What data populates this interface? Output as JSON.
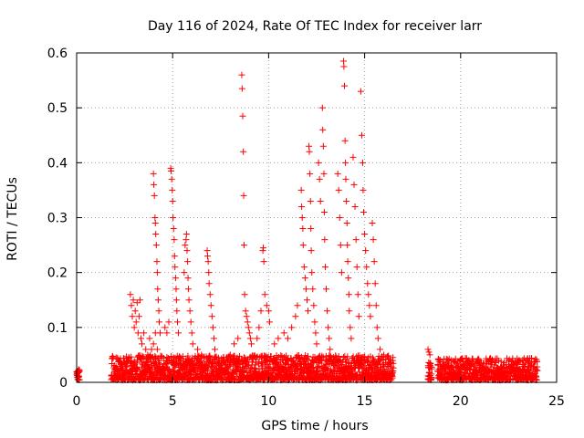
{
  "chart_data": {
    "type": "scatter",
    "title": "Day 116 of 2024, Rate Of TEC Index for receiver larr",
    "xlabel": "GPS time / hours",
    "ylabel": "ROTI / TECUs",
    "xlim": [
      0,
      25
    ],
    "ylim": [
      0,
      0.6
    ],
    "xticks": [
      0,
      5,
      10,
      15,
      20,
      25
    ],
    "xtick_labels": [
      "0",
      "5",
      "10",
      "15",
      "20",
      "25"
    ],
    "yticks": [
      0,
      0.1,
      0.2,
      0.3,
      0.4,
      0.5,
      0.6
    ],
    "ytick_labels": [
      "0",
      "0.1",
      "0.2",
      "0.3",
      "0.4",
      "0.5",
      "0.6"
    ],
    "grid": true,
    "marker": "+",
    "color": "#ff0000",
    "baseline": [
      {
        "x0": 0.0,
        "x1": 0.15,
        "max": 0.02
      },
      {
        "x0": 1.8,
        "x1": 16.5,
        "max": 0.045
      },
      {
        "x0": 18.3,
        "x1": 18.5,
        "max": 0.035
      },
      {
        "x0": 18.8,
        "x1": 24.0,
        "max": 0.04
      }
    ],
    "series": [
      {
        "name": "ROTI",
        "points": [
          [
            2.8,
            0.16
          ],
          [
            2.85,
            0.14
          ],
          [
            2.9,
            0.12
          ],
          [
            2.95,
            0.15
          ],
          [
            3.0,
            0.1
          ],
          [
            3.05,
            0.13
          ],
          [
            3.1,
            0.11
          ],
          [
            3.15,
            0.145
          ],
          [
            3.2,
            0.09
          ],
          [
            3.25,
            0.12
          ],
          [
            3.3,
            0.15
          ],
          [
            3.35,
            0.08
          ],
          [
            3.4,
            0.07
          ],
          [
            3.5,
            0.09
          ],
          [
            3.6,
            0.06
          ],
          [
            3.7,
            0.05
          ],
          [
            3.8,
            0.08
          ],
          [
            3.9,
            0.06
          ],
          [
            4.0,
            0.07
          ],
          [
            4.1,
            0.09
          ],
          [
            4.2,
            0.06
          ],
          [
            4.0,
            0.38
          ],
          [
            4.02,
            0.36
          ],
          [
            4.05,
            0.34
          ],
          [
            4.08,
            0.3
          ],
          [
            4.1,
            0.29
          ],
          [
            4.12,
            0.27
          ],
          [
            4.15,
            0.25
          ],
          [
            4.18,
            0.22
          ],
          [
            4.2,
            0.2
          ],
          [
            4.22,
            0.17
          ],
          [
            4.25,
            0.15
          ],
          [
            4.28,
            0.13
          ],
          [
            4.3,
            0.11
          ],
          [
            4.35,
            0.09
          ],
          [
            4.6,
            0.1
          ],
          [
            4.7,
            0.09
          ],
          [
            4.8,
            0.11
          ],
          [
            4.9,
            0.39
          ],
          [
            4.92,
            0.385
          ],
          [
            4.95,
            0.37
          ],
          [
            4.98,
            0.35
          ],
          [
            5.0,
            0.33
          ],
          [
            5.02,
            0.3
          ],
          [
            5.05,
            0.28
          ],
          [
            5.08,
            0.26
          ],
          [
            5.1,
            0.23
          ],
          [
            5.12,
            0.21
          ],
          [
            5.15,
            0.19
          ],
          [
            5.18,
            0.17
          ],
          [
            5.2,
            0.15
          ],
          [
            5.22,
            0.13
          ],
          [
            5.25,
            0.11
          ],
          [
            5.3,
            0.09
          ],
          [
            5.6,
            0.2
          ],
          [
            5.65,
            0.25
          ],
          [
            5.7,
            0.26
          ],
          [
            5.72,
            0.27
          ],
          [
            5.75,
            0.24
          ],
          [
            5.78,
            0.22
          ],
          [
            5.8,
            0.19
          ],
          [
            5.82,
            0.17
          ],
          [
            5.85,
            0.15
          ],
          [
            5.9,
            0.13
          ],
          [
            5.95,
            0.11
          ],
          [
            6.0,
            0.09
          ],
          [
            6.05,
            0.07
          ],
          [
            6.3,
            0.06
          ],
          [
            6.5,
            0.05
          ],
          [
            6.8,
            0.24
          ],
          [
            6.82,
            0.23
          ],
          [
            6.85,
            0.22
          ],
          [
            6.88,
            0.2
          ],
          [
            6.9,
            0.18
          ],
          [
            6.95,
            0.16
          ],
          [
            7.0,
            0.14
          ],
          [
            7.05,
            0.12
          ],
          [
            7.1,
            0.1
          ],
          [
            7.15,
            0.08
          ],
          [
            7.2,
            0.06
          ],
          [
            8.0,
            0.05
          ],
          [
            8.2,
            0.07
          ],
          [
            8.4,
            0.08
          ],
          [
            8.6,
            0.56
          ],
          [
            8.62,
            0.535
          ],
          [
            8.65,
            0.485
          ],
          [
            8.68,
            0.42
          ],
          [
            8.7,
            0.34
          ],
          [
            8.72,
            0.25
          ],
          [
            8.75,
            0.16
          ],
          [
            8.8,
            0.13
          ],
          [
            8.85,
            0.12
          ],
          [
            8.9,
            0.11
          ],
          [
            8.95,
            0.1
          ],
          [
            9.0,
            0.09
          ],
          [
            9.05,
            0.08
          ],
          [
            9.1,
            0.07
          ],
          [
            9.4,
            0.08
          ],
          [
            9.5,
            0.1
          ],
          [
            9.6,
            0.13
          ],
          [
            9.7,
            0.24
          ],
          [
            9.72,
            0.245
          ],
          [
            9.75,
            0.22
          ],
          [
            9.8,
            0.16
          ],
          [
            9.9,
            0.14
          ],
          [
            10.0,
            0.13
          ],
          [
            10.05,
            0.11
          ],
          [
            10.3,
            0.07
          ],
          [
            10.5,
            0.08
          ],
          [
            10.8,
            0.09
          ],
          [
            11.0,
            0.08
          ],
          [
            11.2,
            0.1
          ],
          [
            11.4,
            0.12
          ],
          [
            11.5,
            0.14
          ],
          [
            11.7,
            0.35
          ],
          [
            11.72,
            0.32
          ],
          [
            11.75,
            0.3
          ],
          [
            11.78,
            0.28
          ],
          [
            11.8,
            0.25
          ],
          [
            11.85,
            0.21
          ],
          [
            11.9,
            0.19
          ],
          [
            11.95,
            0.17
          ],
          [
            12.0,
            0.15
          ],
          [
            12.05,
            0.13
          ],
          [
            12.1,
            0.43
          ],
          [
            12.12,
            0.42
          ],
          [
            12.15,
            0.38
          ],
          [
            12.18,
            0.33
          ],
          [
            12.2,
            0.28
          ],
          [
            12.22,
            0.24
          ],
          [
            12.25,
            0.2
          ],
          [
            12.3,
            0.17
          ],
          [
            12.35,
            0.14
          ],
          [
            12.4,
            0.11
          ],
          [
            12.45,
            0.09
          ],
          [
            12.5,
            0.07
          ],
          [
            12.6,
            0.4
          ],
          [
            12.65,
            0.37
          ],
          [
            12.7,
            0.33
          ],
          [
            12.8,
            0.5
          ],
          [
            12.82,
            0.46
          ],
          [
            12.85,
            0.43
          ],
          [
            12.88,
            0.38
          ],
          [
            12.9,
            0.31
          ],
          [
            12.92,
            0.26
          ],
          [
            12.95,
            0.21
          ],
          [
            13.0,
            0.17
          ],
          [
            13.05,
            0.13
          ],
          [
            13.1,
            0.1
          ],
          [
            13.15,
            0.08
          ],
          [
            13.2,
            0.06
          ],
          [
            13.6,
            0.38
          ],
          [
            13.65,
            0.35
          ],
          [
            13.7,
            0.3
          ],
          [
            13.75,
            0.25
          ],
          [
            13.8,
            0.2
          ],
          [
            13.9,
            0.585
          ],
          [
            13.92,
            0.575
          ],
          [
            13.95,
            0.54
          ],
          [
            13.98,
            0.44
          ],
          [
            14.0,
            0.4
          ],
          [
            14.02,
            0.37
          ],
          [
            14.05,
            0.33
          ],
          [
            14.08,
            0.29
          ],
          [
            14.1,
            0.25
          ],
          [
            14.12,
            0.22
          ],
          [
            14.15,
            0.19
          ],
          [
            14.18,
            0.16
          ],
          [
            14.2,
            0.13
          ],
          [
            14.25,
            0.1
          ],
          [
            14.3,
            0.08
          ],
          [
            14.4,
            0.41
          ],
          [
            14.45,
            0.36
          ],
          [
            14.5,
            0.32
          ],
          [
            14.55,
            0.26
          ],
          [
            14.6,
            0.21
          ],
          [
            14.65,
            0.16
          ],
          [
            14.7,
            0.12
          ],
          [
            14.8,
            0.53
          ],
          [
            14.85,
            0.45
          ],
          [
            14.9,
            0.4
          ],
          [
            14.92,
            0.35
          ],
          [
            14.95,
            0.31
          ],
          [
            15.0,
            0.27
          ],
          [
            15.05,
            0.24
          ],
          [
            15.1,
            0.21
          ],
          [
            15.15,
            0.18
          ],
          [
            15.2,
            0.16
          ],
          [
            15.25,
            0.14
          ],
          [
            15.3,
            0.12
          ],
          [
            15.4,
            0.29
          ],
          [
            15.45,
            0.26
          ],
          [
            15.5,
            0.22
          ],
          [
            15.55,
            0.18
          ],
          [
            15.6,
            0.14
          ],
          [
            15.65,
            0.1
          ],
          [
            15.7,
            0.08
          ],
          [
            15.8,
            0.06
          ],
          [
            16.0,
            0.05
          ],
          [
            18.3,
            0.06
          ],
          [
            18.35,
            0.055
          ],
          [
            18.4,
            0.05
          ]
        ]
      }
    ]
  }
}
